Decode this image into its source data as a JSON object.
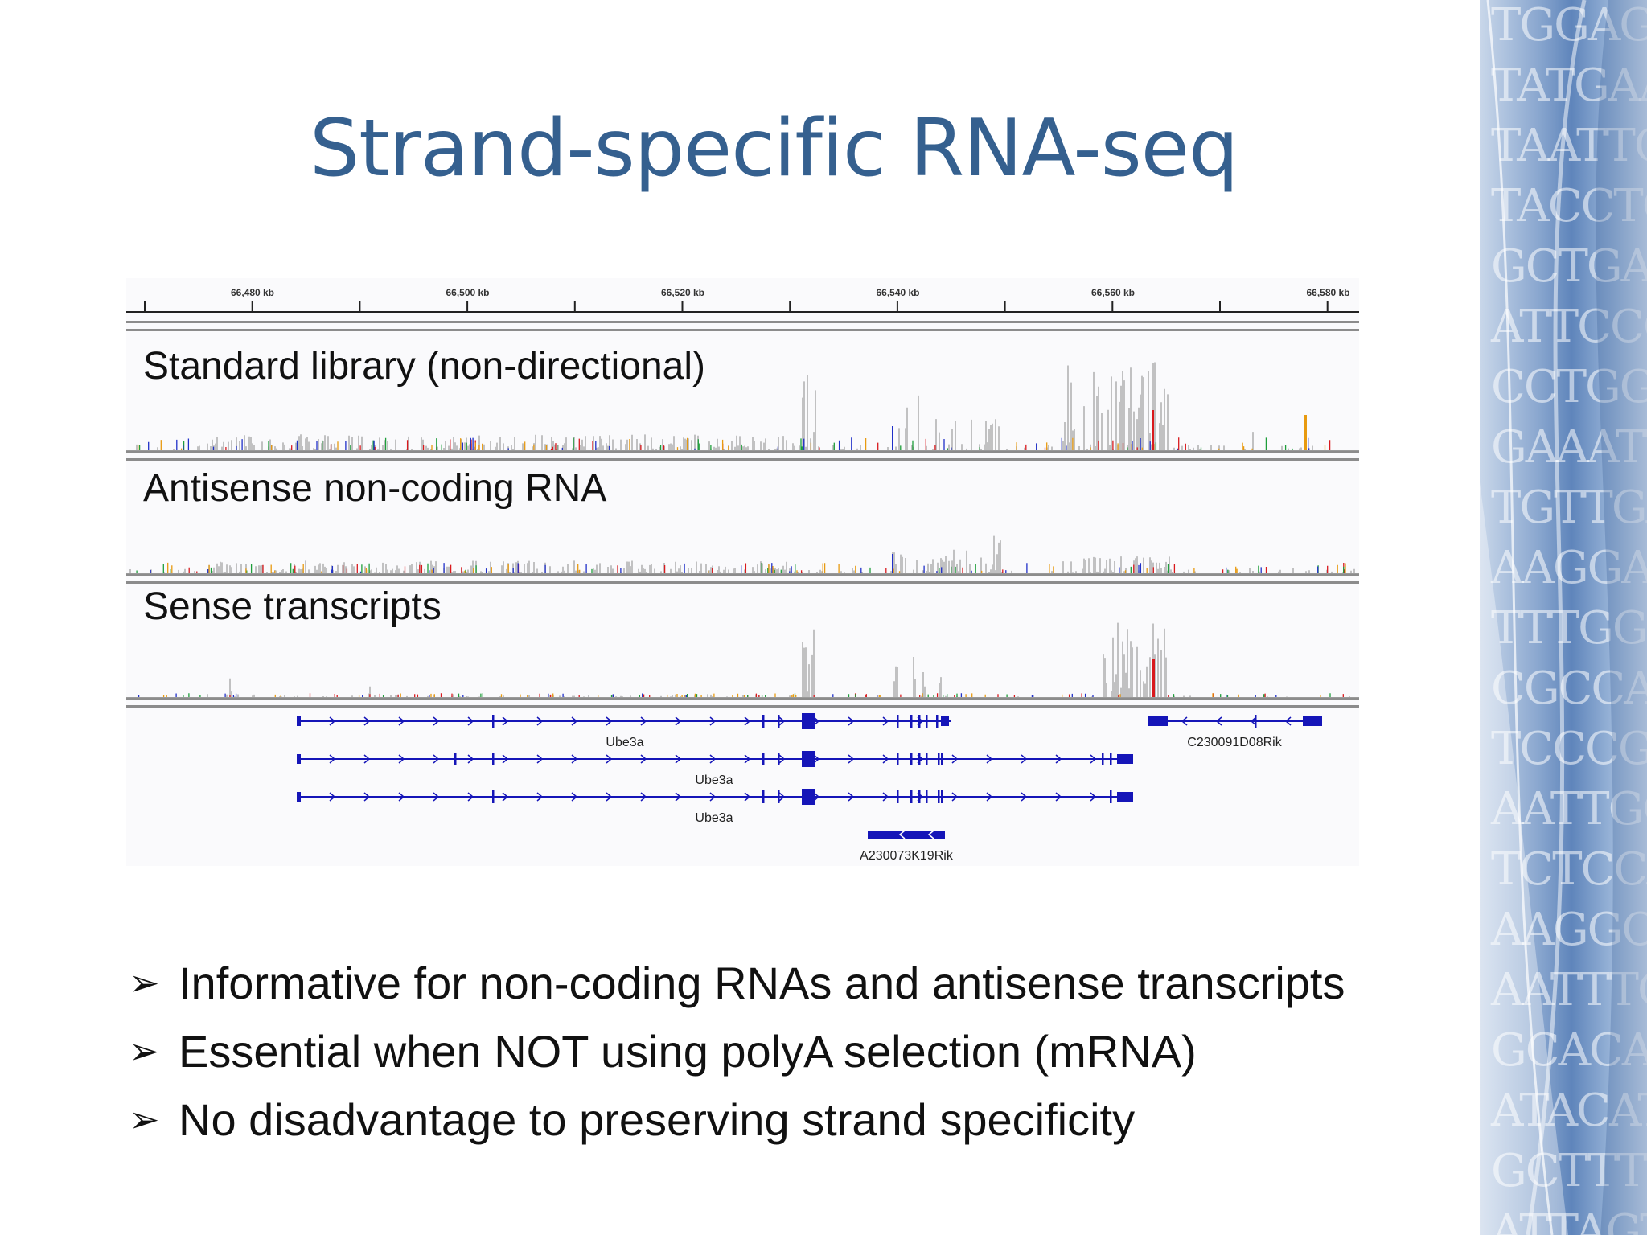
{
  "slide": {
    "title": "Strand-specific RNA-seq",
    "bullets": [
      "Informative for non-coding RNAs and antisense transcripts",
      "Essential when NOT using polyA selection (mRNA)",
      "No disadvantage to preserving strand specificity"
    ],
    "bullet_marker": "➢"
  },
  "genome_browser": {
    "ruler_ticks": [
      "66,480 kb",
      "66,500 kb",
      "66,520 kb",
      "66,540 kb",
      "66,560 kb",
      "66,580 kb"
    ],
    "tracks": [
      {
        "label": "Standard library (non-directional)"
      },
      {
        "label": "Antisense non-coding RNA"
      },
      {
        "label": "Sense transcripts"
      }
    ],
    "genes": [
      {
        "name": "Ube3a",
        "strand": "+"
      },
      {
        "name": "Ube3a",
        "strand": "+"
      },
      {
        "name": "Ube3a",
        "strand": "+"
      },
      {
        "name": "C230091D08Rik",
        "strand": "-"
      },
      {
        "name": "A230073K19Rik",
        "strand": "-"
      }
    ],
    "colors": {
      "coverage": "#b3b3b3",
      "gene": "#1515b8",
      "mismatch_red": "#d9191d",
      "ruler": "#222222"
    }
  },
  "decoration": {
    "dna_letters": [
      "TGGAGA",
      "TATGAAG",
      "TAATTCT",
      "TACCTCC",
      "GCTGAAC",
      "ATTCCCT",
      "CCTGGGA",
      "GAAATT",
      "TGTTGA",
      "AAGGAG",
      "TTTGGG",
      "CGCCAG",
      "TCCCGC",
      "AATTGC",
      "TCTCCA",
      "AAGGCT",
      "AATTTG",
      "GCACAA",
      "ATACAT",
      "GCTTTT",
      "ATTAGT"
    ]
  }
}
